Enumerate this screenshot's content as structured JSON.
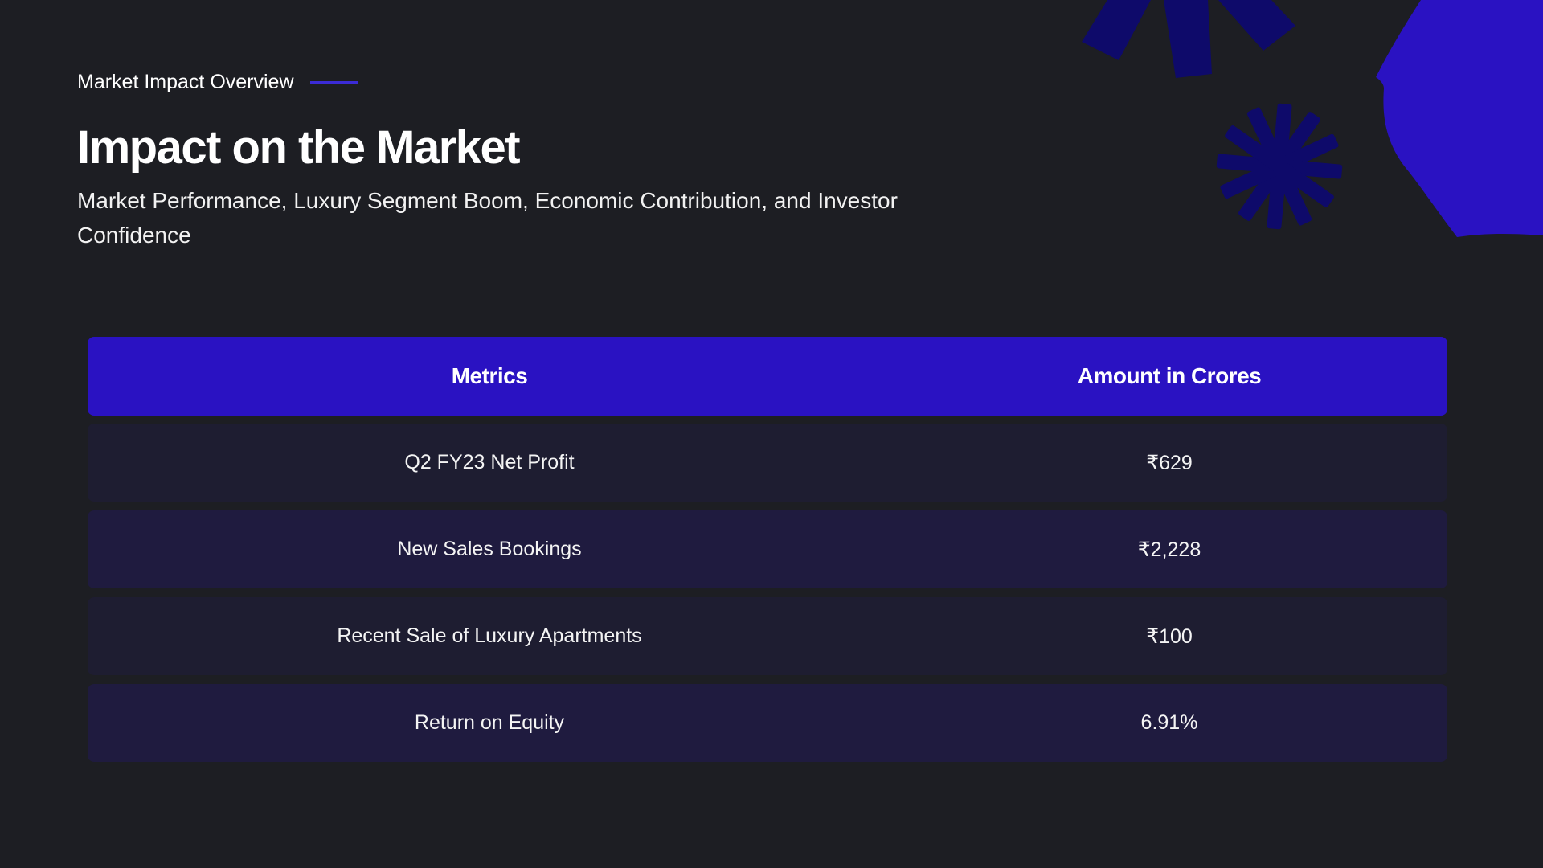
{
  "colors": {
    "background": "#1d1e23",
    "accent": "#2a12c2",
    "accent_dark": "#0e0a6a",
    "row_odd": "#1e1d31",
    "row_even": "#1f1b3f"
  },
  "header": {
    "eyebrow": "Market Impact Overview",
    "title": "Impact on the Market",
    "subtitle": "Market Performance, Luxury Segment Boom, Economic Contribution, and Investor Confidence"
  },
  "table": {
    "columns": [
      "Metrics",
      "Amount in Crores"
    ],
    "rows": [
      {
        "metric": "Q2 FY23 Net Profit",
        "amount": "₹629"
      },
      {
        "metric": "New Sales Bookings",
        "amount": "₹2,228"
      },
      {
        "metric": "Recent Sale of Luxury Apartments",
        "amount": "₹100"
      },
      {
        "metric": "Return on Equity",
        "amount": "6.91%"
      }
    ]
  },
  "decorations": [
    "asterisk-shape",
    "starburst-shape",
    "blob-shape"
  ]
}
